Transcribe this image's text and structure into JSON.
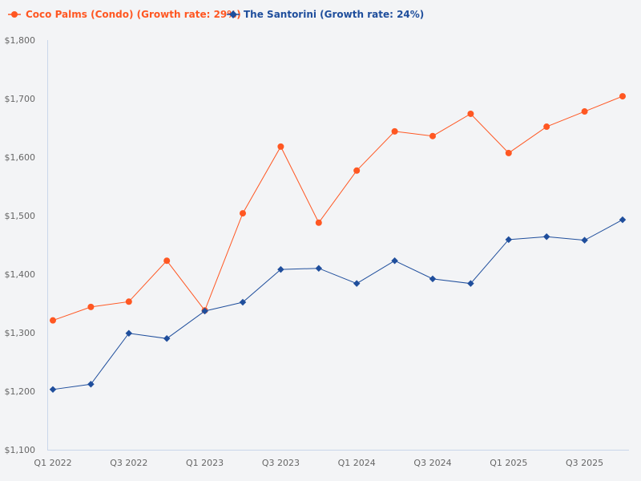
{
  "chart_data": {
    "type": "line",
    "title": "",
    "xlabel": "",
    "ylabel": "",
    "ylim": [
      1100,
      1800
    ],
    "y_ticks": [
      "$1,100",
      "$1,200",
      "$1,300",
      "$1,400",
      "$1,500",
      "$1,600",
      "$1,700",
      "$1,800"
    ],
    "y_tick_values": [
      1100,
      1200,
      1300,
      1400,
      1500,
      1600,
      1700,
      1800
    ],
    "x_tick_labels": [
      "Q1 2022",
      "Q3 2022",
      "Q1 2023",
      "Q3 2023",
      "Q1 2024",
      "Q3 2024",
      "Q1 2025",
      "Q3 2025"
    ],
    "grid": false,
    "legend_position": "top-left",
    "series": [
      {
        "name": "Coco Palms (Condo) (Growth rate: 29%)",
        "color": "#ff5722",
        "marker": "circle",
        "values": [
          1321,
          1344,
          1353,
          1423,
          1338,
          1504,
          1618,
          1488,
          1577,
          1644,
          1636,
          1674,
          1607,
          1652,
          1678,
          1704
        ]
      },
      {
        "name": "The Santorini (Growth rate: 24%)",
        "color": "#1f4e9c",
        "marker": "diamond",
        "values": [
          1203,
          1212,
          1299,
          1290,
          1337,
          1352,
          1408,
          1410,
          1384,
          1423,
          1392,
          1384,
          1459,
          1464,
          1458,
          1493
        ]
      }
    ]
  }
}
